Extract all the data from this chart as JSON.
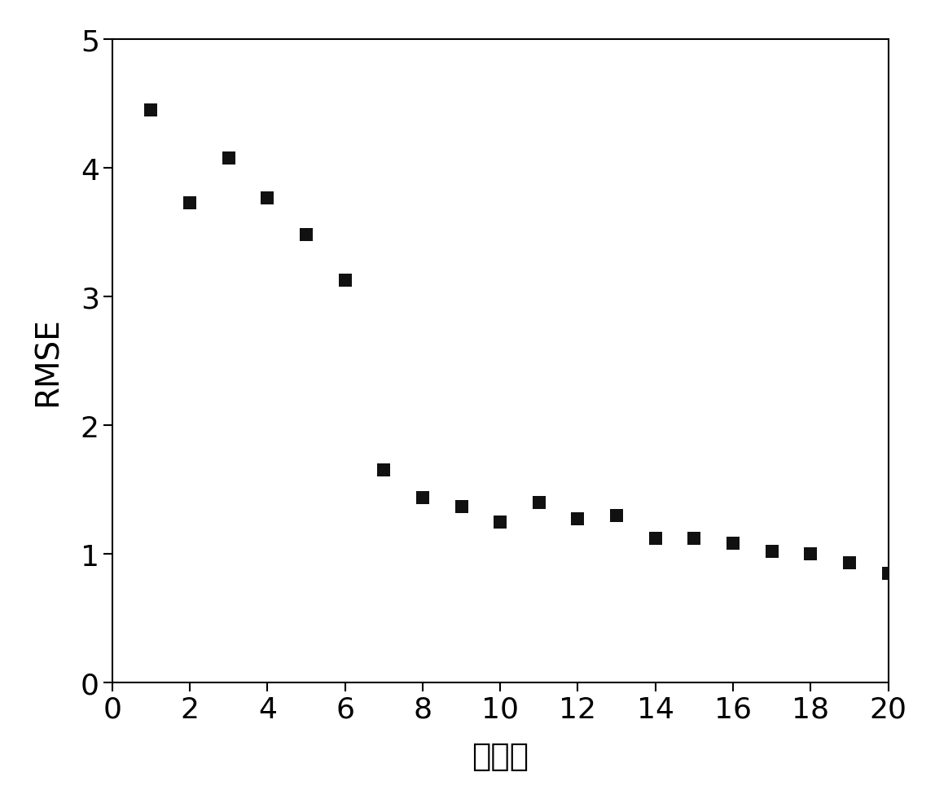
{
  "x_values": [
    1,
    2,
    3,
    4,
    5,
    6,
    7,
    8,
    9,
    10,
    11,
    12,
    13,
    14,
    15,
    16,
    17,
    18,
    19,
    20
  ],
  "y_values": [
    4.45,
    3.73,
    4.08,
    3.77,
    3.48,
    3.13,
    1.65,
    1.44,
    1.37,
    1.25,
    1.4,
    1.27,
    1.3,
    1.12,
    1.12,
    1.08,
    1.02,
    1.0,
    0.93,
    0.85
  ],
  "xlabel": "因子数",
  "ylabel": "RMSE",
  "xlim": [
    0,
    20
  ],
  "ylim": [
    0,
    5
  ],
  "xticks": [
    0,
    2,
    4,
    6,
    8,
    10,
    12,
    14,
    16,
    18,
    20
  ],
  "yticks": [
    0,
    1,
    2,
    3,
    4,
    5
  ],
  "marker_color": "#111111",
  "marker_size": 130,
  "marker_style": "s",
  "background_color": "#ffffff",
  "label_fontsize": 28,
  "tick_fontsize": 26,
  "spine_linewidth": 1.5
}
